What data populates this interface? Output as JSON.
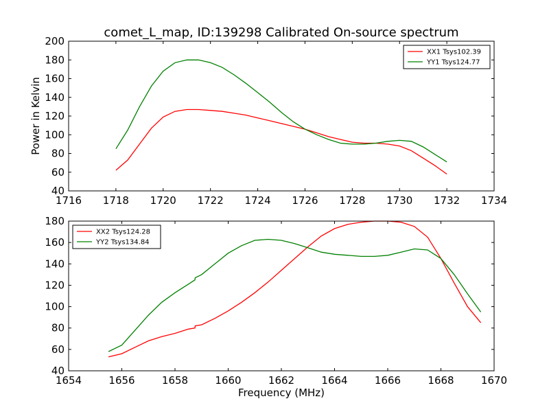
{
  "chart_data": [
    {
      "type": "line",
      "title": "comet_L_map, ID:139298 Calibrated On-source spectrum",
      "xlabel": "",
      "ylabel": "Power in Kelvin",
      "xlim": [
        1716,
        1734
      ],
      "ylim": [
        40,
        200
      ],
      "xticks": [
        1716,
        1718,
        1720,
        1722,
        1724,
        1726,
        1728,
        1730,
        1732,
        1734
      ],
      "yticks": [
        40,
        60,
        80,
        100,
        120,
        140,
        160,
        180,
        200
      ],
      "xtick_labels": [
        "1716",
        "1718",
        "1720",
        "1722",
        "1724",
        "1726",
        "1728",
        "1730",
        "1732",
        "1734"
      ],
      "ytick_labels": [
        "40",
        "60",
        "80",
        "100",
        "120",
        "140",
        "160",
        "180",
        "200"
      ],
      "legend_position": "top-right",
      "series": [
        {
          "name": "XX1 Tsys102.39",
          "color": "#ff0000",
          "x": [
            1718,
            1718.5,
            1719,
            1719.5,
            1720,
            1720.5,
            1721,
            1721.5,
            1722,
            1722.5,
            1723,
            1723.5,
            1724,
            1724.5,
            1725,
            1725.5,
            1726,
            1726.5,
            1727,
            1727.5,
            1728,
            1728.5,
            1729,
            1729.5,
            1730,
            1730.5,
            1731,
            1731.5,
            1732
          ],
          "y": [
            62,
            73,
            90,
            107,
            119,
            125,
            127,
            127,
            126,
            125,
            123,
            121,
            118,
            115,
            112,
            109,
            106,
            102,
            98,
            95,
            92,
            91,
            91,
            90,
            88,
            83,
            75,
            67,
            58
          ]
        },
        {
          "name": "YY1 Tsys124.77",
          "color": "#008000",
          "x": [
            1718,
            1718.5,
            1719,
            1719.5,
            1720,
            1720.5,
            1721,
            1721.5,
            1722,
            1722.5,
            1723,
            1723.5,
            1724,
            1724.5,
            1725,
            1725.5,
            1726,
            1726.5,
            1727,
            1727.5,
            1728,
            1728.5,
            1729,
            1729.5,
            1730,
            1730.5,
            1731,
            1731.5,
            1732
          ],
          "y": [
            85,
            105,
            130,
            152,
            168,
            177,
            180,
            180,
            177,
            172,
            164,
            155,
            145,
            135,
            124,
            114,
            106,
            100,
            95,
            91,
            90,
            90,
            91,
            93,
            94,
            93,
            87,
            79,
            71
          ]
        }
      ]
    },
    {
      "type": "line",
      "title": "",
      "xlabel": "Frequency (MHz)",
      "ylabel": "",
      "xlim": [
        1654,
        1670
      ],
      "ylim": [
        40,
        180
      ],
      "xticks": [
        1654,
        1656,
        1658,
        1660,
        1662,
        1664,
        1666,
        1668,
        1670
      ],
      "yticks": [
        40,
        60,
        80,
        100,
        120,
        140,
        160,
        180
      ],
      "xtick_labels": [
        "1654",
        "1656",
        "1658",
        "1660",
        "1662",
        "1664",
        "1666",
        "1668",
        "1670"
      ],
      "ytick_labels": [
        "40",
        "60",
        "80",
        "100",
        "120",
        "140",
        "160",
        "180"
      ],
      "legend_position": "top-left",
      "series": [
        {
          "name": "XX2 Tsys124.28",
          "color": "#ff0000",
          "x": [
            1655.5,
            1656,
            1656.5,
            1657,
            1657.5,
            1658,
            1658.5,
            1658.75,
            1658.76,
            1659,
            1659.5,
            1660,
            1660.5,
            1661,
            1661.5,
            1662,
            1662.5,
            1663,
            1663.5,
            1664,
            1664.5,
            1665,
            1665.5,
            1666,
            1666.5,
            1667,
            1667.5,
            1668,
            1668.5,
            1669,
            1669.5
          ],
          "y": [
            53,
            56,
            62,
            68,
            72,
            75,
            79,
            80,
            82,
            83,
            89,
            96,
            104,
            113,
            123,
            134,
            145,
            156,
            166,
            173,
            177,
            179,
            180,
            180,
            179,
            175,
            165,
            145,
            122,
            100,
            85
          ]
        },
        {
          "name": "YY2 Tsys134.84",
          "color": "#008000",
          "x": [
            1655.5,
            1656,
            1656.5,
            1657,
            1657.5,
            1658,
            1658.5,
            1658.75,
            1658.76,
            1659,
            1659.5,
            1660,
            1660.5,
            1661,
            1661.5,
            1662,
            1662.5,
            1663,
            1663.5,
            1664,
            1664.5,
            1665,
            1665.5,
            1666,
            1666.5,
            1667,
            1667.5,
            1668,
            1668.5,
            1669,
            1669.5
          ],
          "y": [
            58,
            64,
            78,
            92,
            104,
            113,
            121,
            125,
            127,
            130,
            140,
            150,
            157,
            162,
            163,
            162,
            159,
            155,
            151,
            149,
            148,
            147,
            147,
            148,
            151,
            154,
            153,
            145,
            130,
            112,
            95
          ]
        }
      ]
    }
  ]
}
